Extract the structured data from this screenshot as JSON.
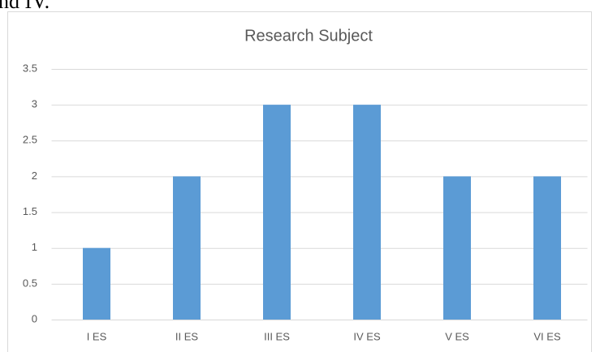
{
  "context_text": "nd IV.",
  "chart_data": {
    "type": "bar",
    "title": "Research Subject",
    "categories": [
      "I ES",
      "II ES",
      "III ES",
      "IV ES",
      "V ES",
      "VI ES"
    ],
    "values": [
      1,
      2,
      3,
      3,
      2,
      2
    ],
    "color": "#5b9bd5",
    "ylim": [
      0,
      3.5
    ],
    "yticks": [
      0,
      0.5,
      1,
      1.5,
      2,
      2.5,
      3,
      3.5
    ],
    "grid": true
  }
}
